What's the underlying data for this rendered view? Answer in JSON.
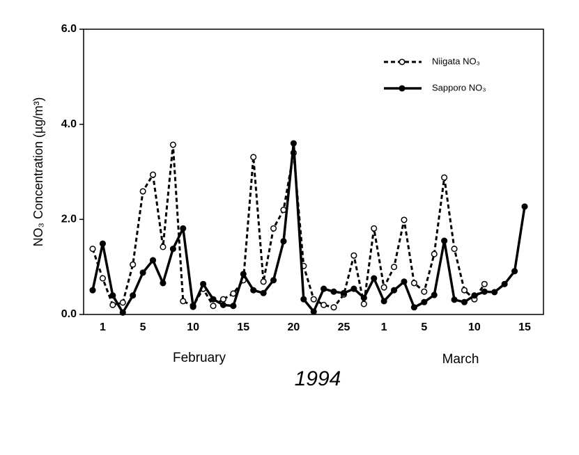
{
  "chart_data": {
    "type": "line",
    "ylabel": "NO₃ Concentration (µg/m³)",
    "xlabel": "1994",
    "x_group_labels": [
      "February",
      "March"
    ],
    "categories": [
      null,
      "1",
      null,
      null,
      null,
      "5",
      null,
      null,
      null,
      null,
      "10",
      null,
      null,
      null,
      null,
      "15",
      null,
      null,
      null,
      null,
      "20",
      null,
      null,
      null,
      null,
      "25",
      null,
      null,
      null,
      "1",
      null,
      null,
      null,
      "5",
      null,
      null,
      null,
      null,
      "10",
      null,
      null,
      null,
      null,
      "15"
    ],
    "ylim": [
      0,
      6
    ],
    "yticks": [
      {
        "value": 0,
        "label": "0.0"
      },
      {
        "value": 2,
        "label": "2.0"
      },
      {
        "value": 4,
        "label": "4.0"
      },
      {
        "value": 6,
        "label": "6.0"
      }
    ],
    "legend": "upper right",
    "series": [
      {
        "name": "Niigata NO₃",
        "color": "#000000",
        "style": "dashed",
        "marker": "open",
        "values": [
          1.38,
          0.76,
          0.2,
          0.25,
          1.05,
          2.59,
          2.94,
          1.42,
          3.57,
          0.28,
          0.18,
          0.54,
          0.18,
          0.32,
          0.44,
          0.72,
          3.31,
          0.69,
          1.81,
          2.2,
          3.4,
          1.02,
          0.32,
          0.2,
          0.15,
          0.42,
          1.24,
          0.22,
          1.81,
          0.57,
          1.0,
          1.99,
          0.66,
          0.48,
          1.27,
          2.88,
          1.38,
          0.51,
          0.32,
          0.64,
          null,
          null,
          null,
          null
        ]
      },
      {
        "name": "Sapporo NO₃",
        "color": "#000000",
        "style": "solid",
        "marker": "filled",
        "values": [
          0.51,
          1.49,
          0.4,
          0.04,
          0.4,
          0.88,
          1.14,
          0.66,
          1.38,
          1.81,
          0.16,
          0.64,
          0.32,
          0.2,
          0.18,
          0.85,
          0.51,
          0.45,
          0.72,
          1.54,
          3.6,
          0.32,
          0.06,
          0.54,
          0.48,
          0.45,
          0.54,
          0.35,
          0.76,
          0.28,
          0.51,
          0.69,
          0.15,
          0.26,
          0.41,
          1.55,
          0.31,
          0.26,
          0.4,
          0.48,
          0.47,
          0.64,
          0.91,
          2.27
        ]
      }
    ]
  }
}
